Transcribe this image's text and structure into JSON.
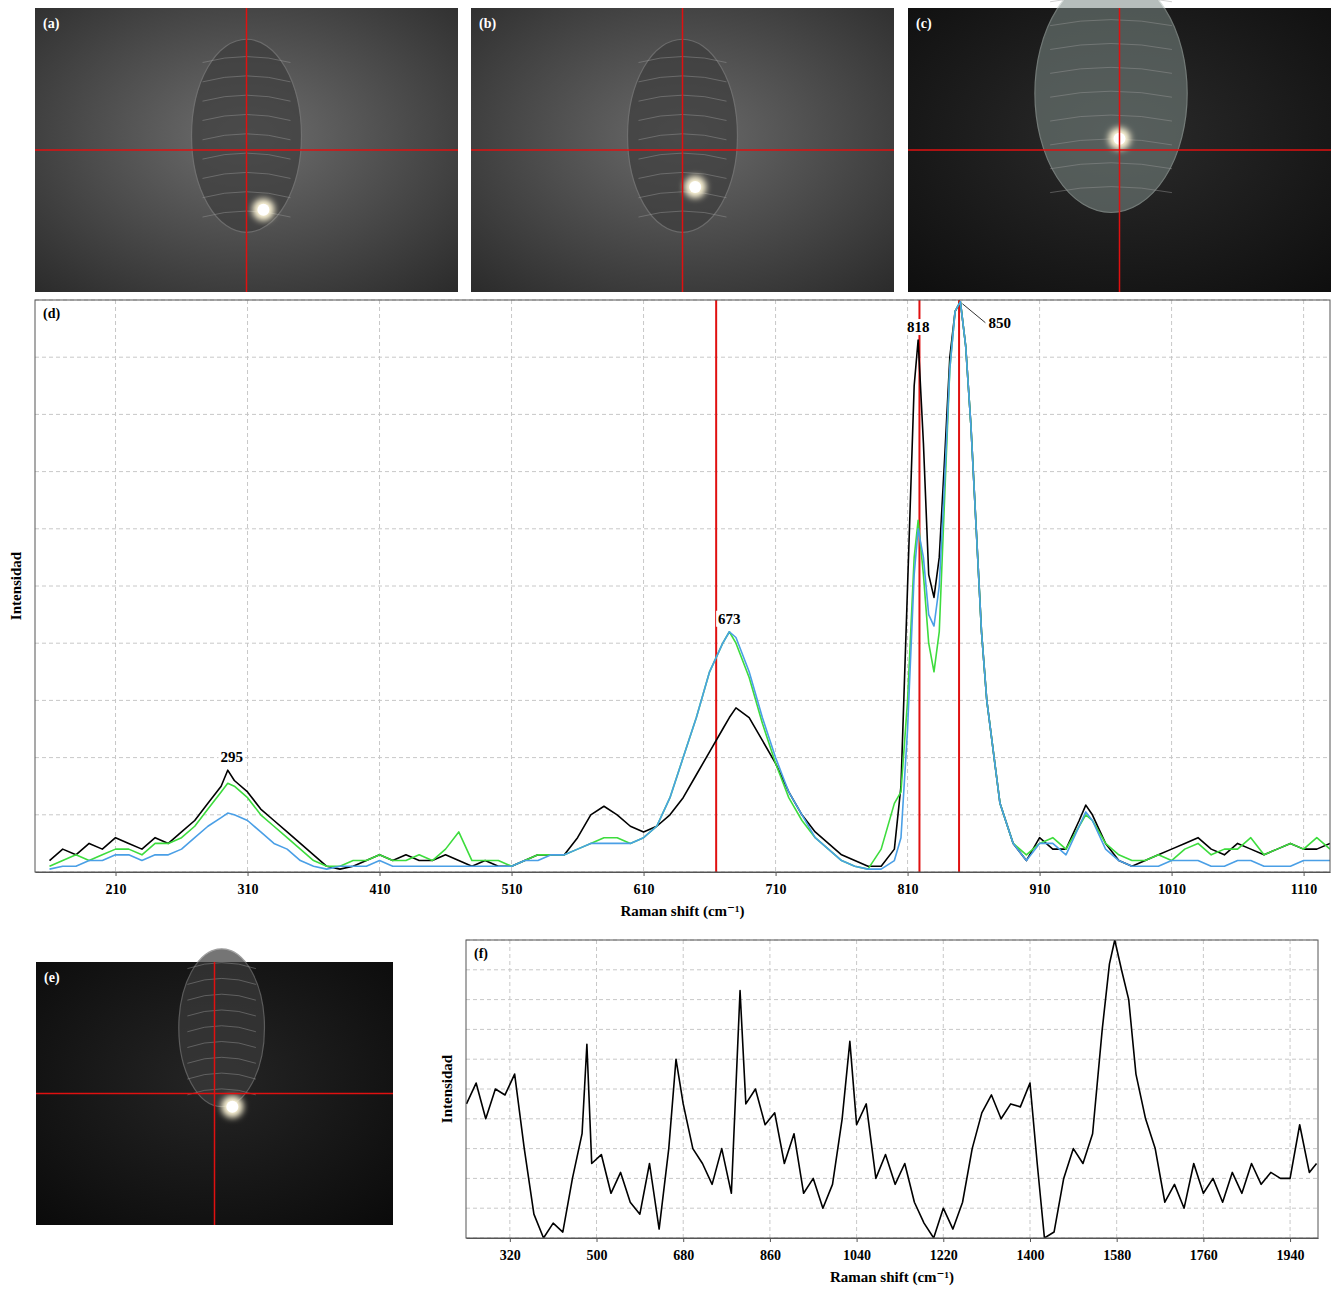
{
  "chart_data": [
    {
      "type": "image",
      "title": "(a)"
    },
    {
      "type": "image",
      "title": "(b)"
    },
    {
      "type": "image",
      "title": "(c)"
    },
    {
      "type": "line",
      "title": "(d)",
      "x_label": "Raman shift (cm⁻¹)",
      "y_label": "Intensidad",
      "x": [
        160,
        170,
        180,
        190,
        200,
        210,
        220,
        230,
        240,
        250,
        260,
        270,
        280,
        290,
        295,
        300,
        310,
        320,
        330,
        340,
        350,
        360,
        370,
        380,
        390,
        400,
        410,
        420,
        430,
        440,
        450,
        460,
        470,
        480,
        490,
        500,
        510,
        520,
        530,
        540,
        550,
        560,
        570,
        580,
        590,
        600,
        610,
        620,
        630,
        640,
        650,
        660,
        670,
        675,
        680,
        690,
        700,
        710,
        720,
        730,
        740,
        750,
        760,
        770,
        780,
        790,
        800,
        805,
        810,
        815,
        818,
        822,
        826,
        830,
        834,
        838,
        842,
        846,
        850,
        854,
        858,
        862,
        866,
        870,
        880,
        890,
        900,
        910,
        920,
        930,
        940,
        945,
        950,
        960,
        970,
        980,
        990,
        1000,
        1010,
        1020,
        1030,
        1040,
        1050,
        1060,
        1070,
        1080,
        1090,
        1100,
        1110,
        1120,
        1130
      ],
      "series": [
        {
          "color": "#000000",
          "values": [
            2,
            4,
            3,
            5,
            4,
            6,
            5,
            4,
            6,
            5,
            7,
            9,
            12,
            15,
            17.8,
            16,
            14,
            11,
            9,
            7,
            5,
            3,
            1,
            0.5,
            1,
            2,
            3,
            2,
            3,
            2,
            2,
            3,
            2,
            1,
            2,
            1,
            1,
            2,
            3,
            3,
            3,
            6,
            10,
            11.5,
            10,
            8,
            7,
            8,
            10,
            13,
            17,
            21,
            25,
            27,
            28.7,
            27,
            23,
            19,
            14,
            10,
            7,
            5,
            3,
            2,
            1,
            1,
            4,
            15,
            50,
            85,
            93,
            75,
            52,
            48,
            55,
            72,
            90,
            98,
            99.7,
            92,
            78,
            60,
            42,
            30,
            12,
            5,
            2,
            6,
            4,
            4,
            9,
            11.7,
            10,
            5,
            2,
            1,
            2,
            3,
            4,
            5,
            6,
            4,
            3,
            5,
            4,
            3,
            4,
            5,
            4,
            4,
            5
          ]
        },
        {
          "color": "#3ddc3d",
          "values": [
            1,
            2,
            3,
            2,
            3,
            4,
            4,
            3,
            5,
            5,
            6,
            8,
            11,
            14,
            15.5,
            15,
            13,
            10,
            8,
            6,
            4,
            2,
            1,
            1,
            2,
            2,
            3,
            2,
            2,
            3,
            2,
            4,
            7,
            2,
            2,
            2,
            1,
            2,
            3,
            3,
            3,
            4,
            5,
            6,
            6,
            5,
            6,
            8,
            13,
            20,
            27,
            35,
            40,
            42,
            40,
            34,
            26,
            19,
            13,
            9,
            6,
            4,
            2,
            1,
            0.5,
            4,
            12,
            14,
            30,
            55,
            61.5,
            52,
            40,
            35,
            42,
            65,
            88,
            98,
            99.7,
            92,
            78,
            60,
            42,
            30,
            12,
            5,
            3,
            5,
            6,
            4,
            8,
            10,
            9,
            5,
            3,
            2,
            2,
            3,
            2,
            4,
            5,
            3,
            4,
            4,
            6,
            3,
            4,
            5,
            4,
            6,
            4
          ]
        },
        {
          "color": "#4a9fe6",
          "values": [
            0.5,
            1,
            1,
            2,
            2,
            3,
            3,
            2,
            3,
            3,
            4,
            6,
            8,
            9.5,
            10.3,
            10,
            9,
            7,
            5,
            4,
            2,
            1,
            0.5,
            1,
            1,
            1,
            2,
            1,
            1,
            1,
            1,
            1,
            1,
            1,
            1,
            1,
            1,
            2,
            2,
            3,
            3,
            4,
            5,
            5,
            5,
            5,
            6,
            8,
            13,
            20,
            27,
            35,
            40,
            42,
            41,
            35,
            27,
            20,
            14,
            10,
            6,
            4,
            2,
            1,
            0.5,
            0.5,
            2,
            6,
            25,
            52,
            60,
            55,
            45,
            43,
            50,
            68,
            88,
            98,
            99.7,
            92,
            78,
            60,
            42,
            30,
            12,
            5,
            2,
            5,
            5,
            3,
            8,
            10.5,
            9,
            4,
            2,
            1,
            1,
            1,
            2,
            2,
            2,
            1,
            1,
            2,
            2,
            1,
            1,
            1,
            2,
            2,
            2
          ]
        }
      ],
      "xlim": [
        149,
        1130
      ],
      "ylim": [
        0,
        100
      ],
      "xticks": [
        210,
        310,
        410,
        510,
        610,
        710,
        810,
        910,
        1010,
        1110
      ],
      "yticks": [
        0,
        10,
        20,
        30,
        40,
        50,
        60,
        70,
        80,
        90,
        100
      ],
      "grid": true,
      "tick_labels": "x",
      "vlines": [
        665,
        819,
        849
      ],
      "annotations": [
        {
          "text": "295",
          "x": 298,
          "y": 17.8
        },
        {
          "text": "673",
          "x": 675,
          "y": 42
        },
        {
          "text": "818",
          "x": 818,
          "y": 93
        },
        {
          "text": "850",
          "x": 850,
          "y": 99.7
        }
      ]
    },
    {
      "type": "image",
      "title": "(e)"
    },
    {
      "type": "line",
      "title": "(f)",
      "x_label": "Raman shift (cm⁻¹)",
      "y_label": "Intensidad",
      "x": [
        230,
        250,
        270,
        290,
        310,
        330,
        350,
        370,
        390,
        410,
        430,
        450,
        470,
        480,
        490,
        510,
        530,
        550,
        570,
        590,
        610,
        630,
        650,
        665,
        680,
        700,
        720,
        740,
        760,
        780,
        798,
        810,
        830,
        850,
        870,
        890,
        910,
        930,
        950,
        970,
        990,
        1010,
        1026,
        1040,
        1060,
        1080,
        1100,
        1120,
        1140,
        1160,
        1180,
        1200,
        1220,
        1240,
        1260,
        1280,
        1300,
        1320,
        1340,
        1360,
        1380,
        1400,
        1415,
        1430,
        1450,
        1470,
        1490,
        1510,
        1530,
        1550,
        1565,
        1576,
        1590,
        1605,
        1620,
        1640,
        1660,
        1680,
        1700,
        1720,
        1740,
        1760,
        1780,
        1800,
        1820,
        1840,
        1860,
        1880,
        1900,
        1920,
        1940,
        1960,
        1980,
        1995
      ],
      "series": [
        {
          "color": "#000000",
          "values": [
            45,
            52,
            40,
            50,
            48,
            55,
            30,
            8,
            0,
            5,
            2,
            20,
            35,
            65,
            25,
            28,
            15,
            22,
            12,
            8,
            25,
            3,
            30,
            60,
            45,
            30,
            25,
            18,
            30,
            15,
            83,
            45,
            50,
            38,
            42,
            25,
            35,
            15,
            20,
            10,
            18,
            40,
            66,
            38,
            45,
            20,
            28,
            18,
            25,
            12,
            5,
            0,
            10,
            3,
            12,
            30,
            42,
            48,
            40,
            45,
            44,
            52,
            25,
            0,
            2,
            20,
            30,
            25,
            35,
            70,
            92,
            100,
            90,
            80,
            55,
            40,
            30,
            12,
            18,
            10,
            25,
            15,
            20,
            12,
            22,
            15,
            25,
            18,
            22,
            20,
            20,
            38,
            22,
            25
          ]
        }
      ],
      "xlim": [
        229,
        1998
      ],
      "ylim": [
        0,
        100
      ],
      "xticks": [
        320,
        500,
        680,
        860,
        1040,
        1220,
        1400,
        1580,
        1760,
        1940
      ],
      "yticks": [
        0,
        10,
        20,
        30,
        40,
        50,
        60,
        70,
        80,
        90,
        100
      ],
      "grid": true,
      "tick_labels": "x"
    }
  ]
}
